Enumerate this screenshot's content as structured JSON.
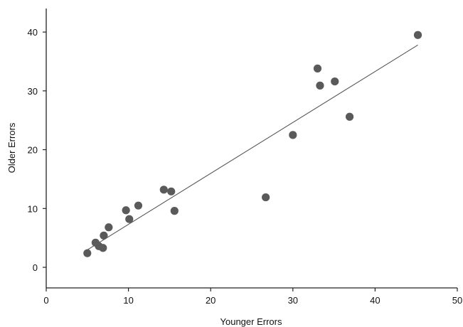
{
  "chart_data": {
    "type": "scatter",
    "title": "",
    "xlabel": "Younger Errors",
    "ylabel": "Older Errors",
    "xlim": [
      0,
      50
    ],
    "ylim": [
      -3.5,
      44
    ],
    "x_ticks": [
      "0",
      "10",
      "20",
      "30",
      "40",
      "50"
    ],
    "y_ticks": [
      "0",
      "10",
      "20",
      "30",
      "40"
    ],
    "grid": false,
    "legend": "none",
    "colors": {
      "point": "#5a5a5a",
      "line": "#555555",
      "axis": "#222222"
    },
    "series": [
      {
        "points": [
          {
            "x": 5.0,
            "y": 2.4
          },
          {
            "x": 6.0,
            "y": 4.2
          },
          {
            "x": 6.4,
            "y": 3.6
          },
          {
            "x": 6.9,
            "y": 3.3
          },
          {
            "x": 7.0,
            "y": 5.4
          },
          {
            "x": 7.6,
            "y": 6.8
          },
          {
            "x": 9.7,
            "y": 9.7
          },
          {
            "x": 10.1,
            "y": 8.2
          },
          {
            "x": 11.2,
            "y": 10.5
          },
          {
            "x": 14.3,
            "y": 13.2
          },
          {
            "x": 15.2,
            "y": 12.9
          },
          {
            "x": 15.6,
            "y": 9.6
          },
          {
            "x": 26.7,
            "y": 11.9
          },
          {
            "x": 30.0,
            "y": 22.5
          },
          {
            "x": 33.0,
            "y": 33.8
          },
          {
            "x": 33.3,
            "y": 30.9
          },
          {
            "x": 35.1,
            "y": 31.6
          },
          {
            "x": 36.9,
            "y": 25.6
          },
          {
            "x": 45.2,
            "y": 39.5
          }
        ]
      }
    ],
    "fit_line": {
      "x1": 4.8,
      "y1": 2.8,
      "x2": 45.2,
      "y2": 37.8
    }
  }
}
